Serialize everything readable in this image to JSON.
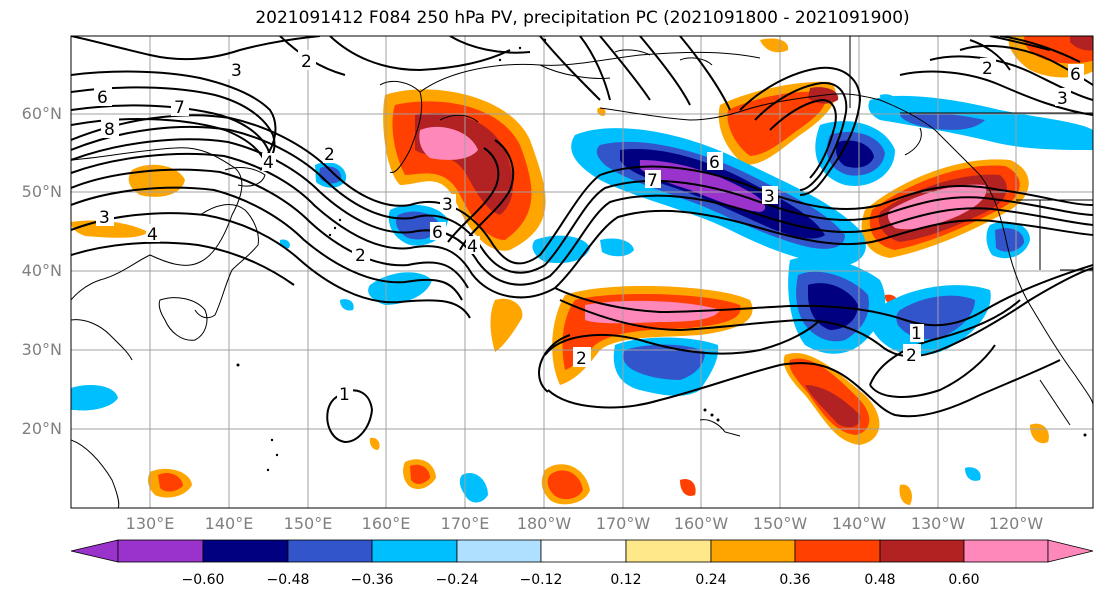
{
  "title": "2021091412 F084 250 hPa PV, precipitation PC (2021091800 - 2021091900)",
  "lat_labels": [
    "60°N",
    "50°N",
    "40°N",
    "30°N",
    "20°N"
  ],
  "lon_labels": [
    "130°E",
    "140°E",
    "150°E",
    "160°E",
    "170°E",
    "180°W",
    "170°W",
    "160°W",
    "150°W",
    "140°W",
    "130°W",
    "120°W"
  ],
  "colorbar": {
    "colors": [
      "#9933cc",
      "#000080",
      "#3355cc",
      "#00bfff",
      "#b0e0ff",
      "#ffffff",
      "#ffe88a",
      "#ffa500",
      "#ff4000",
      "#b22222",
      "#ff88bb"
    ],
    "ticks": [
      "−0.60",
      "−0.48",
      "−0.36",
      "−0.24",
      "−0.12",
      "0.12",
      "0.24",
      "0.36",
      "0.48",
      "0.60"
    ]
  },
  "contour_labels": [
    "2",
    "3",
    "6",
    "7",
    "8",
    "4",
    "3",
    "4",
    "2",
    "2",
    "3",
    "6",
    "4",
    "2",
    "1",
    "7",
    "6",
    "3",
    "2",
    "1",
    "2",
    "3",
    "6"
  ]
}
